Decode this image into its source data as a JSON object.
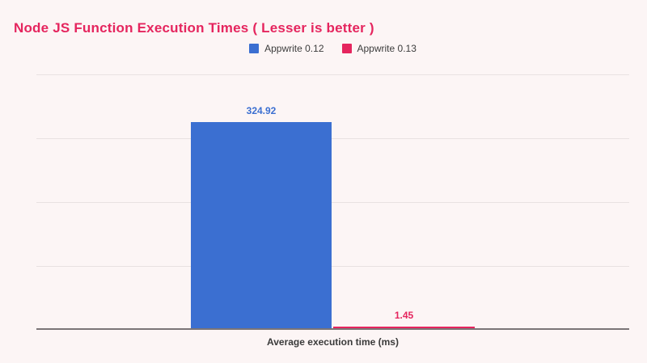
{
  "chart": {
    "title": "Node JS Function Execution Times ( Lesser is better )",
    "x_axis_label": "Average execution time (ms)"
  },
  "chart_data": {
    "type": "bar",
    "categories": [
      "Average execution time (ms)"
    ],
    "series": [
      {
        "name": "Appwrite 0.12",
        "values": [
          324.92
        ],
        "color": "#3b6fd1"
      },
      {
        "name": "Appwrite 0.13",
        "values": [
          1.45
        ],
        "color": "#e5255e"
      }
    ],
    "title": "Node JS Function Execution Times ( Lesser is better )",
    "xlabel": "Average execution time (ms)",
    "ylabel": "",
    "ylim": [
      0,
      400
    ],
    "gridline_step": 100,
    "grid": true,
    "legend_position": "top",
    "y_tick_labels_visible": false,
    "data_labels_visible": true
  },
  "colors": {
    "background": "#fcf5f5",
    "title": "#e5255e",
    "series_1": "#3b6fd1",
    "series_2": "#e5255e",
    "gridline": "#e8e1e1",
    "axis_line": "#7b7577",
    "legend_text": "#3c3c3c",
    "axis_label_text": "#3a3a3a"
  }
}
